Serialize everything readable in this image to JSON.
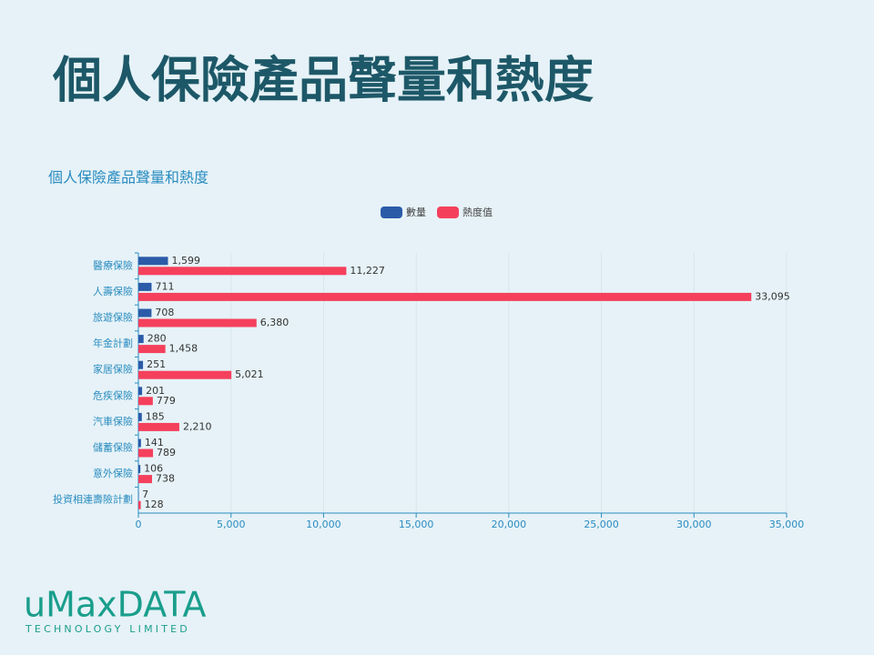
{
  "slide_title": "個人保險產品聲量和熱度",
  "logo": {
    "name": "uMaxDATA",
    "tagline": "TECHNOLOGY LIMITED"
  },
  "chart_data": {
    "type": "hbar",
    "title": "個人保險產品聲量和熱度",
    "categories": [
      "醫療保險",
      "人壽保險",
      "旅遊保險",
      "年金計劃",
      "家居保險",
      "危疾保險",
      "汽車保險",
      "儲蓄保險",
      "意外保險",
      "投資相連壽險計劃"
    ],
    "series": [
      {
        "name": "數量",
        "color": "#2b5ba8",
        "values": [
          1599,
          711,
          708,
          280,
          251,
          201,
          185,
          141,
          106,
          7
        ],
        "value_labels": [
          "1,599",
          "711",
          "708",
          "280",
          "251",
          "201",
          "185",
          "141",
          "106",
          "7"
        ]
      },
      {
        "name": "熱度值",
        "color": "#f5405c",
        "values": [
          11227,
          33095,
          6380,
          1458,
          5021,
          779,
          2210,
          789,
          738,
          128
        ],
        "value_labels": [
          "11,227",
          "33,095",
          "6,380",
          "1,458",
          "5,021",
          "779",
          "2,210",
          "789",
          "738",
          "128"
        ]
      }
    ],
    "xlim": [
      0,
      35000
    ],
    "xticks": [
      0,
      {
        "value": 5000,
        "label": "5,000"
      },
      {
        "value": 10000,
        "label": "10,000"
      },
      {
        "value": 15000,
        "label": "15,000"
      },
      {
        "value": 20000,
        "label": "20,000"
      },
      {
        "value": 25000,
        "label": "25,000"
      },
      {
        "value": 30000,
        "label": "30,000"
      },
      {
        "value": 35000,
        "label": "35,000"
      }
    ],
    "grid": true,
    "legend": "top"
  }
}
